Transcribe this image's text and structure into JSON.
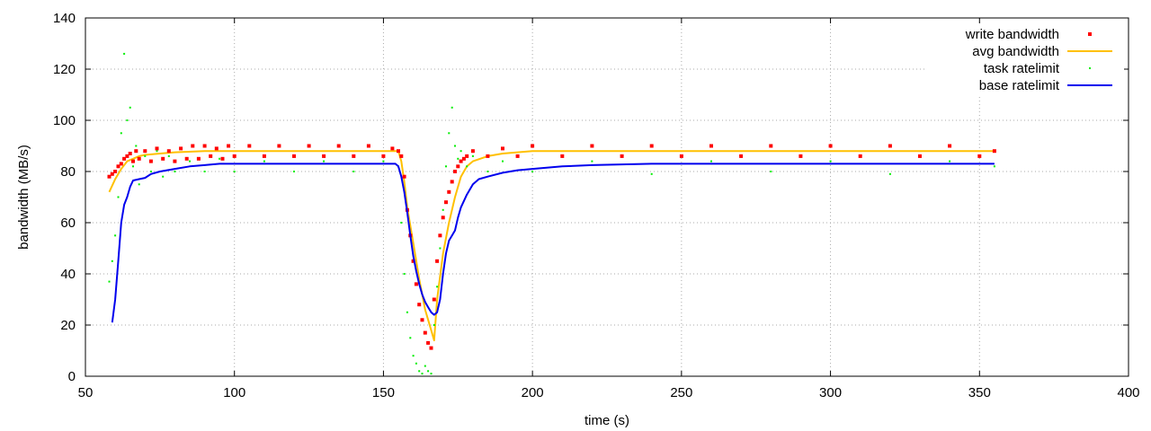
{
  "chart_data": {
    "type": "scatter",
    "title": "",
    "xlabel": "time (s)",
    "ylabel": "bandwidth (MB/s)",
    "xlim": [
      50,
      400
    ],
    "ylim": [
      0,
      140
    ],
    "xticks": [
      "50",
      "100",
      "150",
      "200",
      "250",
      "300",
      "350",
      "400"
    ],
    "yticks": [
      "0",
      "20",
      "40",
      "60",
      "80",
      "100",
      "120",
      "140"
    ],
    "grid": true,
    "legend_position": "top-right",
    "colors": {
      "write_bandwidth": "#ff0000",
      "avg_bandwidth": "#ffc000",
      "task_ratelimit": "#00ee00",
      "base_ratelimit": "#0000ee"
    },
    "series": [
      {
        "name": "write bandwidth",
        "style": "points",
        "x": [
          58,
          59,
          60,
          61,
          62,
          63,
          64,
          65,
          66,
          67,
          68,
          70,
          72,
          74,
          76,
          78,
          80,
          82,
          84,
          86,
          88,
          90,
          92,
          94,
          96,
          98,
          100,
          105,
          110,
          115,
          120,
          125,
          130,
          135,
          140,
          145,
          150,
          153,
          155,
          156,
          157,
          158,
          159,
          160,
          161,
          162,
          163,
          164,
          165,
          166,
          167,
          168,
          169,
          170,
          171,
          172,
          173,
          174,
          175,
          176,
          177,
          178,
          180,
          185,
          190,
          195,
          200,
          210,
          220,
          230,
          240,
          250,
          260,
          270,
          280,
          290,
          300,
          310,
          320,
          330,
          340,
          350,
          355
        ],
        "y": [
          78,
          79,
          80,
          82,
          83,
          85,
          86,
          87,
          84,
          88,
          85,
          88,
          84,
          89,
          85,
          88,
          84,
          89,
          85,
          90,
          85,
          90,
          86,
          89,
          85,
          90,
          86,
          90,
          86,
          90,
          86,
          90,
          86,
          90,
          86,
          90,
          86,
          89,
          88,
          86,
          78,
          65,
          55,
          45,
          36,
          28,
          22,
          17,
          13,
          11,
          30,
          45,
          55,
          62,
          68,
          72,
          76,
          80,
          82,
          84,
          85,
          86,
          88,
          86,
          89,
          86,
          90,
          86,
          90,
          86,
          90,
          86,
          90,
          86,
          90,
          86,
          90,
          86,
          90,
          86,
          90,
          86,
          88
        ]
      },
      {
        "name": "avg bandwidth",
        "style": "line",
        "x": [
          58,
          60,
          62,
          64,
          66,
          68,
          70,
          75,
          80,
          90,
          100,
          120,
          140,
          150,
          155,
          156,
          157,
          158,
          160,
          162,
          164,
          166,
          167,
          168,
          170,
          172,
          174,
          176,
          178,
          180,
          185,
          190,
          200,
          250,
          300,
          350,
          355
        ],
        "y": [
          72,
          77,
          81,
          84,
          85,
          86,
          86.5,
          87,
          87.5,
          88,
          88,
          88,
          88,
          88,
          88,
          84,
          76,
          66,
          52,
          38,
          26,
          18,
          14,
          30,
          48,
          60,
          70,
          78,
          82,
          84,
          86,
          87,
          88,
          88,
          88,
          88,
          88
        ]
      },
      {
        "name": "task ratelimit",
        "style": "points",
        "x": [
          58,
          59,
          60,
          61,
          62,
          63,
          64,
          65,
          66,
          67,
          68,
          70,
          72,
          74,
          76,
          78,
          80,
          85,
          90,
          95,
          100,
          110,
          120,
          130,
          140,
          150,
          155,
          156,
          157,
          158,
          159,
          160,
          161,
          162,
          163,
          164,
          165,
          166,
          167,
          168,
          169,
          170,
          171,
          172,
          173,
          174,
          175,
          176,
          178,
          180,
          185,
          190,
          200,
          220,
          240,
          260,
          280,
          300,
          320,
          340,
          355
        ],
        "y": [
          37,
          45,
          55,
          70,
          95,
          126,
          100,
          105,
          82,
          90,
          75,
          86,
          80,
          88,
          78,
          86,
          80,
          84,
          80,
          85,
          80,
          84,
          80,
          84,
          80,
          84,
          82,
          60,
          40,
          25,
          15,
          8,
          5,
          2,
          1,
          4,
          2,
          1,
          20,
          35,
          50,
          65,
          82,
          95,
          105,
          90,
          85,
          88,
          82,
          86,
          80,
          84,
          80,
          84,
          79,
          84,
          80,
          84,
          79,
          84,
          82
        ]
      },
      {
        "name": "base ratelimit",
        "style": "line",
        "x": [
          59,
          60,
          61,
          62,
          63,
          64,
          65,
          66,
          68,
          70,
          72,
          75,
          80,
          85,
          90,
          95,
          100,
          110,
          120,
          130,
          140,
          150,
          154,
          155,
          156,
          157,
          158,
          159,
          160,
          161,
          162,
          163,
          164,
          165,
          166,
          167,
          168,
          169,
          170,
          171,
          172,
          173,
          174,
          175,
          176,
          178,
          180,
          182,
          185,
          190,
          195,
          200,
          210,
          220,
          240,
          260,
          300,
          355
        ],
        "y": [
          21,
          30,
          45,
          60,
          67,
          70,
          74,
          76.5,
          77,
          77.5,
          79,
          80,
          81,
          82,
          82.5,
          83,
          83,
          83,
          83,
          83,
          83,
          83,
          83,
          82,
          78,
          72,
          64,
          55,
          47,
          41,
          36,
          32,
          29,
          27,
          25,
          24,
          25,
          30,
          40,
          48,
          53,
          55,
          57,
          62,
          66,
          71,
          75,
          77,
          78,
          79.5,
          80.5,
          81,
          82,
          82.5,
          83,
          83,
          83,
          83
        ]
      }
    ]
  }
}
